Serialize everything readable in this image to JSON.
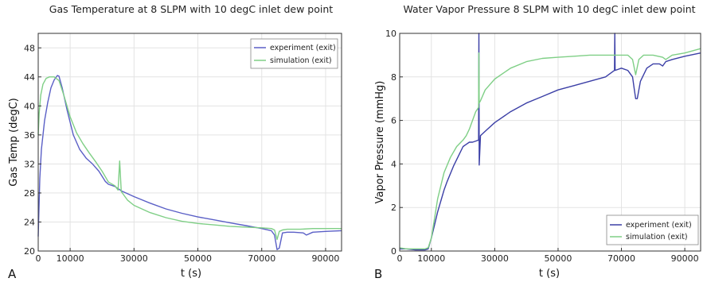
{
  "chart_data": [
    {
      "type": "line",
      "panel_letter": "A",
      "title": "Gas Temperature at 8 SLPM with 10 degC inlet dew point",
      "xlabel": "t (s)",
      "ylabel": "Gas Temp (degC)",
      "xlim": [
        0,
        95000
      ],
      "ylim": [
        20,
        50
      ],
      "xticks": [
        0,
        10000,
        30000,
        50000,
        70000,
        90000
      ],
      "yticks": [
        20,
        24,
        28,
        32,
        36,
        40,
        44,
        48
      ],
      "grid": true,
      "legend_position": "top-right",
      "series": [
        {
          "name": "experiment (exit)",
          "color": "#5a5fc6",
          "x": [
            0,
            500,
            1000,
            2000,
            3000,
            4000,
            5000,
            6000,
            6500,
            7500,
            9000,
            11000,
            13000,
            15000,
            17000,
            19000,
            20000,
            21000,
            22000,
            24000,
            26000,
            30000,
            35000,
            40000,
            45000,
            50000,
            55000,
            60000,
            65000,
            70000,
            73000,
            74000,
            74800,
            75500,
            76500,
            78000,
            80000,
            83000,
            84000,
            86000,
            90000,
            95000
          ],
          "y": [
            22,
            30,
            34,
            38,
            40.5,
            42.5,
            43.6,
            44.2,
            44.1,
            42.5,
            39.5,
            36,
            34,
            32.8,
            32,
            31,
            30.3,
            29.6,
            29.2,
            28.9,
            28.3,
            27.5,
            26.6,
            25.8,
            25.2,
            24.7,
            24.3,
            23.9,
            23.5,
            23.1,
            22.8,
            22.2,
            20.2,
            20.4,
            22.5,
            22.6,
            22.6,
            22.5,
            22.2,
            22.6,
            22.7,
            22.8
          ]
        },
        {
          "name": "simulation (exit)",
          "color": "#7fcf86",
          "x": [
            0,
            300,
            800,
            1500,
            2500,
            3500,
            5000,
            6500,
            8000,
            10000,
            12000,
            14000,
            16000,
            18000,
            20000,
            22000,
            24000,
            25000,
            25500,
            26000,
            28000,
            30000,
            35000,
            40000,
            45000,
            50000,
            55000,
            60000,
            65000,
            70000,
            73000,
            74000,
            74800,
            75500,
            76500,
            78000,
            82000,
            86000,
            90000,
            95000
          ],
          "y": [
            36,
            39,
            41.5,
            43,
            43.8,
            44,
            44,
            43.5,
            41.5,
            38.5,
            36.3,
            34.8,
            33.5,
            32.3,
            31,
            29.5,
            29,
            28.4,
            32.4,
            28.2,
            27,
            26.3,
            25.3,
            24.6,
            24.1,
            23.8,
            23.6,
            23.4,
            23.3,
            23.2,
            23.1,
            22.9,
            21.6,
            22.7,
            22.9,
            23,
            23,
            23.1,
            23.1,
            23.1
          ]
        }
      ]
    },
    {
      "type": "line",
      "panel_letter": "B",
      "title": "Water Vapor Pressure 8 SLPM with 10 degC inlet dew point",
      "xlabel": "t (s)",
      "ylabel": "Vapor Pressure (mmHg)",
      "xlim": [
        0,
        95000
      ],
      "ylim": [
        0,
        10
      ],
      "xticks": [
        0,
        10000,
        30000,
        50000,
        70000,
        90000
      ],
      "yticks": [
        0,
        2,
        4,
        6,
        8,
        10
      ],
      "grid": true,
      "legend_position": "bottom-right",
      "series": [
        {
          "name": "experiment (exit)",
          "color": "#3b3fa6",
          "x": [
            0,
            2000,
            5000,
            8000,
            9000,
            10000,
            11000,
            12000,
            13000,
            14000,
            15000,
            17000,
            19000,
            20000,
            21000,
            22000,
            23000,
            24000,
            24900,
            25000,
            25100,
            25500,
            27000,
            30000,
            35000,
            40000,
            45000,
            50000,
            55000,
            60000,
            65000,
            67800,
            67900,
            68000,
            70000,
            72000,
            73500,
            74000,
            74500,
            75000,
            76000,
            78000,
            80000,
            82000,
            83000,
            84000,
            86000,
            90000,
            95000
          ],
          "y": [
            0.1,
            0.1,
            0.05,
            0.05,
            0.1,
            0.6,
            1.2,
            1.8,
            2.3,
            2.8,
            3.2,
            3.9,
            4.5,
            4.8,
            4.9,
            5,
            5,
            5.05,
            5.1,
            10,
            3.95,
            5.3,
            5.5,
            5.9,
            6.4,
            6.8,
            7.1,
            7.4,
            7.6,
            7.8,
            8,
            8.3,
            10,
            8.3,
            8.4,
            8.3,
            8,
            7.5,
            7,
            7,
            7.8,
            8.4,
            8.6,
            8.6,
            8.5,
            8.7,
            8.8,
            8.95,
            9.1
          ]
        },
        {
          "name": "simulation (exit)",
          "color": "#7fcf86",
          "x": [
            0,
            2000,
            5000,
            8000,
            9000,
            10000,
            11000,
            12000,
            14000,
            16000,
            18000,
            20000,
            21000,
            22000,
            23000,
            24000,
            24900,
            25000,
            25100,
            25500,
            27000,
            30000,
            35000,
            40000,
            45000,
            50000,
            55000,
            60000,
            65000,
            70000,
            72000,
            73500,
            74500,
            75500,
            77000,
            80000,
            83000,
            84000,
            86000,
            90000,
            95000
          ],
          "y": [
            0.15,
            0.1,
            0.1,
            0.1,
            0.15,
            0.6,
            1.5,
            2.4,
            3.6,
            4.3,
            4.8,
            5.1,
            5.3,
            5.6,
            6,
            6.4,
            6.6,
            9.1,
            6.8,
            6.9,
            7.4,
            7.9,
            8.4,
            8.7,
            8.85,
            8.9,
            8.95,
            9,
            9,
            9,
            9,
            8.8,
            8.1,
            8.8,
            9,
            9,
            8.9,
            8.8,
            9,
            9.1,
            9.3
          ]
        }
      ]
    }
  ]
}
